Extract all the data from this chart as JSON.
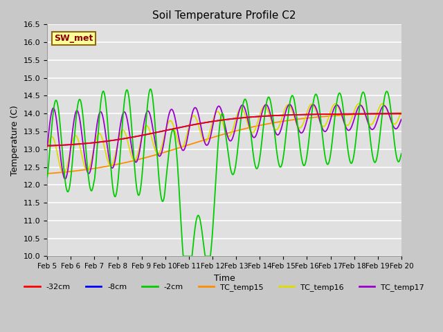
{
  "title": "Soil Temperature Profile C2",
  "xlabel": "Time",
  "ylabel": "Temperature (C)",
  "ylim": [
    10.0,
    16.5
  ],
  "yticks": [
    10.0,
    10.5,
    11.0,
    11.5,
    12.0,
    12.5,
    13.0,
    13.5,
    14.0,
    14.5,
    15.0,
    15.5,
    16.0,
    16.5
  ],
  "annotation_label": "SW_met",
  "annotation_color": "#8B0000",
  "annotation_bg": "#FFFF99",
  "annotation_edge": "#8B6914",
  "legend_labels": [
    "-32cm",
    "-8cm",
    "-2cm",
    "TC_temp15",
    "TC_temp16",
    "TC_temp17"
  ],
  "line_colors": [
    "#FF0000",
    "#0000FF",
    "#00CC00",
    "#FF8C00",
    "#DDDD00",
    "#9900CC"
  ],
  "xtick_labels": [
    "Feb 5",
    "Feb 6",
    "Feb 7",
    "Feb 8",
    "Feb 9",
    "Feb 10",
    "Feb 11",
    "Feb 12",
    "Feb 13",
    "Feb 14",
    "Feb 15",
    "Feb 16",
    "Feb 17",
    "Feb 18",
    "Feb 19",
    "Feb 20"
  ],
  "fig_bg": "#c8c8c8",
  "plot_bg": "#e0e0e0"
}
